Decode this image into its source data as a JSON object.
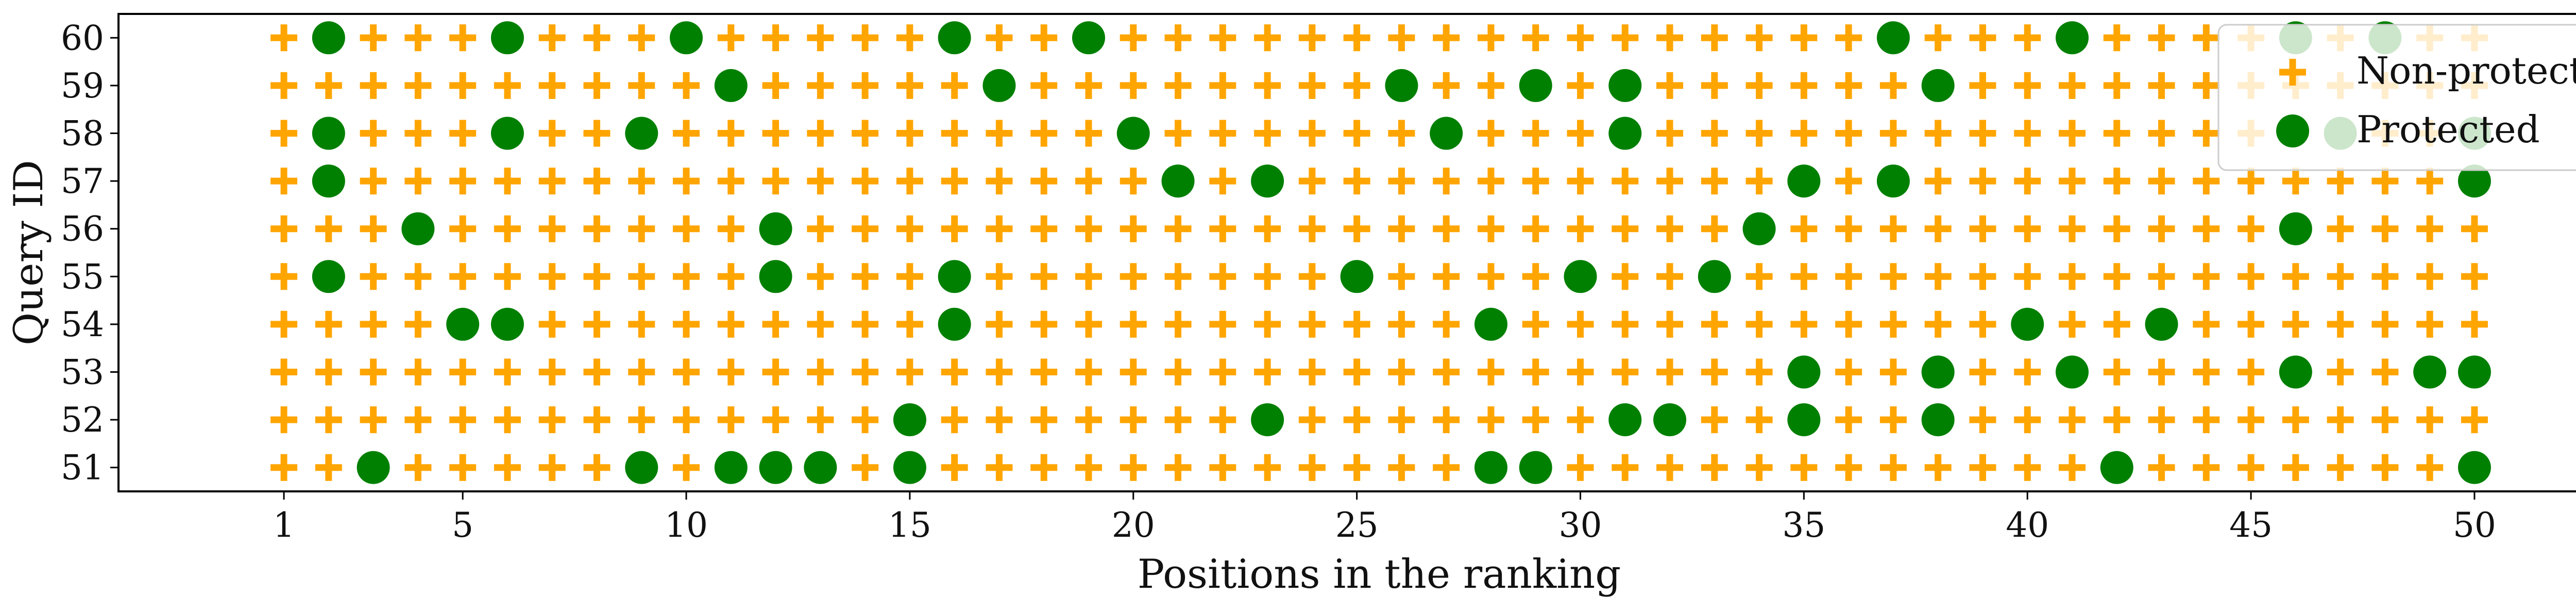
{
  "chart_data": {
    "type": "scatter",
    "title": "",
    "xlabel": "Positions in the ranking",
    "ylabel": "Query ID",
    "xlim": [
      -2.7,
      53.7
    ],
    "ylim": [
      50.5,
      60.5
    ],
    "x_ticks": [
      1,
      5,
      10,
      15,
      20,
      25,
      30,
      35,
      40,
      45,
      50
    ],
    "y_ticks": [
      51,
      52,
      53,
      54,
      55,
      56,
      57,
      58,
      59,
      60
    ],
    "grid": false,
    "legend": {
      "placement": "top-right",
      "entries": [
        {
          "label": "Non-protected",
          "marker": "plus"
        },
        {
          "label": "Protected",
          "marker": "circle"
        }
      ]
    },
    "colors": {
      "non_protected": "#ffa500",
      "protected": "#008000"
    },
    "positions": {
      "start": 1,
      "end": 50
    },
    "series": [
      {
        "name": "Non-protected",
        "marker": "plus",
        "note": "every ranking position 1-50 for each query not listed as Protected"
      },
      {
        "name": "Protected",
        "marker": "circle",
        "points": [
          {
            "query": 60,
            "positions": [
              2,
              6,
              10,
              16,
              19,
              37,
              41,
              46,
              48
            ]
          },
          {
            "query": 59,
            "positions": [
              11,
              17,
              26,
              29,
              31,
              38
            ]
          },
          {
            "query": 58,
            "positions": [
              2,
              6,
              9,
              20,
              27,
              31,
              47,
              50
            ]
          },
          {
            "query": 57,
            "positions": [
              2,
              21,
              23,
              35,
              37,
              50
            ]
          },
          {
            "query": 56,
            "positions": [
              4,
              12,
              34,
              46
            ]
          },
          {
            "query": 55,
            "positions": [
              2,
              12,
              16,
              25,
              30,
              33
            ]
          },
          {
            "query": 54,
            "positions": [
              5,
              6,
              16,
              28,
              40,
              43
            ]
          },
          {
            "query": 53,
            "positions": [
              35,
              38,
              41,
              46,
              49,
              50
            ]
          },
          {
            "query": 52,
            "positions": [
              15,
              23,
              31,
              32,
              35,
              38
            ]
          },
          {
            "query": 51,
            "positions": [
              3,
              9,
              11,
              12,
              13,
              15,
              28,
              29,
              42,
              50
            ]
          }
        ]
      }
    ]
  }
}
